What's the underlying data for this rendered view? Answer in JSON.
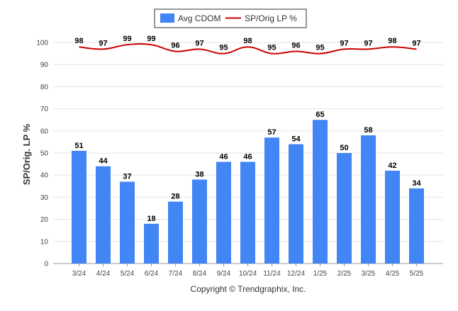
{
  "chart_data": {
    "type": "bar",
    "categories": [
      "3/24",
      "4/24",
      "5/24",
      "6/24",
      "7/24",
      "8/24",
      "9/24",
      "10/24",
      "11/24",
      "12/24",
      "1/25",
      "2/25",
      "3/25",
      "4/25",
      "5/25"
    ],
    "series": [
      {
        "name": "Avg CDOM",
        "type": "bar",
        "color": "#4285f4",
        "values": [
          51,
          44,
          37,
          18,
          28,
          38,
          46,
          46,
          57,
          54,
          65,
          50,
          58,
          42,
          34
        ]
      },
      {
        "name": "SP/Orig LP %",
        "type": "line",
        "color": "#cc0000",
        "values": [
          98,
          97,
          99,
          99,
          96,
          97,
          95,
          98,
          95,
          96,
          95,
          97,
          97,
          98,
          97
        ]
      }
    ],
    "ylabel": "SP/Orig. LP %",
    "ylim": [
      0,
      100
    ],
    "yticks": [
      0,
      10,
      20,
      30,
      40,
      50,
      60,
      70,
      80,
      90,
      100
    ],
    "grid": true,
    "legend": "top-center",
    "copyright": "Copyright © Trendgraphix, Inc."
  }
}
